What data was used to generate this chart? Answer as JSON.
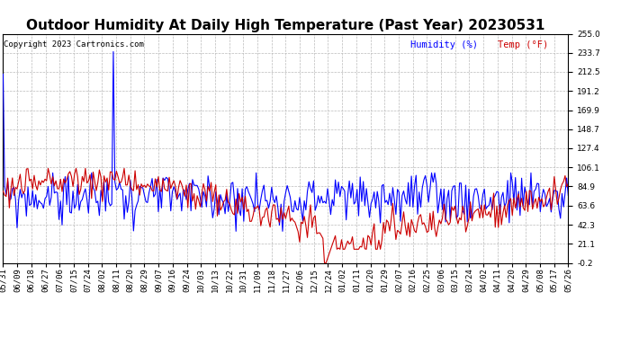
{
  "title": "Outdoor Humidity At Daily High Temperature (Past Year) 20230531",
  "copyright": "Copyright 2023 Cartronics.com",
  "legend_humidity": "Humidity (%)",
  "legend_temp": "Temp (°F)",
  "humidity_color": "#0000ff",
  "temp_color": "#cc0000",
  "background_color": "#ffffff",
  "grid_color": "#bbbbbb",
  "yticks": [
    255.0,
    233.7,
    212.5,
    191.2,
    169.9,
    148.7,
    127.4,
    106.1,
    84.9,
    63.6,
    42.3,
    21.1,
    -0.2
  ],
  "ymin": -0.2,
  "ymax": 255.0,
  "xtick_labels": [
    "05/31",
    "06/09",
    "06/18",
    "06/27",
    "07/06",
    "07/15",
    "07/24",
    "08/02",
    "08/11",
    "08/20",
    "08/29",
    "09/07",
    "09/16",
    "09/24",
    "10/03",
    "10/13",
    "10/22",
    "10/31",
    "11/09",
    "11/18",
    "11/27",
    "12/06",
    "12/15",
    "12/24",
    "01/02",
    "01/11",
    "01/20",
    "01/29",
    "02/07",
    "02/16",
    "02/25",
    "03/06",
    "03/15",
    "03/24",
    "04/02",
    "04/11",
    "04/20",
    "04/29",
    "05/08",
    "05/17",
    "05/26"
  ],
  "title_fontsize": 11,
  "axis_fontsize": 6.5,
  "copyright_fontsize": 6.5,
  "legend_fontsize": 7.5
}
